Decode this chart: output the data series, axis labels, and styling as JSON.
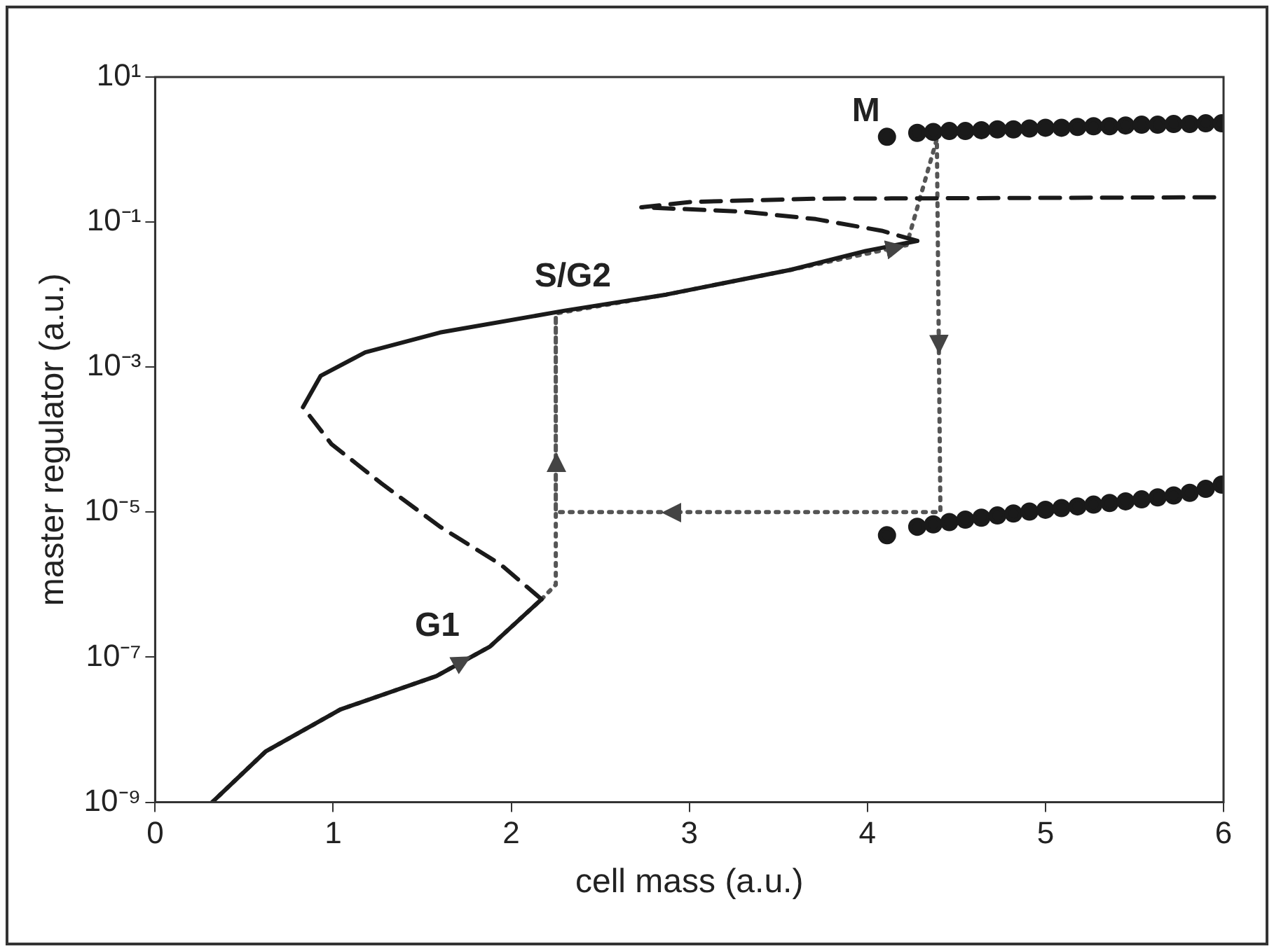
{
  "chart_data": {
    "type": "line",
    "xlabel": "cell mass (a.u.)",
    "ylabel": "master regulator (a.u.)",
    "xlim": [
      0,
      6
    ],
    "xticks": [
      0,
      1,
      2,
      3,
      4,
      5,
      6
    ],
    "ylim": [
      1e-09,
      10
    ],
    "log": "y",
    "grid": false,
    "yticks": [
      {
        "value": 10,
        "label": "10¹"
      },
      {
        "value": 0.1,
        "label": "10⁻¹"
      },
      {
        "value": 0.001,
        "label": "10⁻³"
      },
      {
        "value": 1e-05,
        "label": "10⁻⁵"
      },
      {
        "value": 1e-07,
        "label": "10⁻⁷"
      },
      {
        "value": 1e-09,
        "label": "10⁻⁹"
      }
    ],
    "annotations": [
      {
        "text": "G1",
        "x": 1.75,
        "y": 1.2e-07
      },
      {
        "text": "S/G2",
        "x": 2.6,
        "y": 0.008
      },
      {
        "text": "M",
        "x": 4.11,
        "y": 1.5
      }
    ],
    "series": [
      {
        "color": "#1a1a1a",
        "line_style": "solid",
        "marker": "none",
        "x": [
          0.32,
          0.62,
          1.04,
          1.58,
          1.88,
          2.17,
          1.5,
          0.83,
          0.93,
          1.18,
          1.6,
          2.3,
          2.87,
          3.57,
          3.99,
          4.28
        ],
        "values": [
          1e-09,
          5e-09,
          1.9e-08,
          5.5e-08,
          1.4e-07,
          6.3e-07,
          null,
          0.00028,
          0.00076,
          0.0016,
          0.003,
          0.006,
          0.01,
          0.022,
          0.04,
          0.055
        ]
      },
      {
        "color": "#1a1a1a",
        "line_style": "dashed",
        "marker": "none",
        "x": [
          2.17,
          1.94,
          1.6,
          1.27,
          0.99,
          0.83,
          2,
          4.28,
          4.08,
          3.71,
          3.29,
          2.73,
          3.01,
          3.71,
          6
        ],
        "values": [
          6.3e-07,
          1.9e-06,
          6.3e-06,
          2.5e-05,
          8.7e-05,
          0.00028,
          null,
          0.055,
          0.076,
          0.11,
          0.14,
          0.16,
          0.19,
          0.21,
          0.22
        ]
      },
      {
        "type": "scatter",
        "color": "#1a1a1a",
        "marker": "circle",
        "x": [
          4.11,
          4.28,
          4.37,
          4.46,
          4.55,
          4.64,
          4.73,
          4.82,
          4.91,
          5.0,
          5.09,
          5.18,
          5.27,
          5.36,
          5.45,
          5.54,
          5.63,
          5.72,
          5.81,
          5.9,
          5.99
        ],
        "values": [
          1.5,
          1.7,
          1.75,
          1.8,
          1.8,
          1.85,
          1.9,
          1.9,
          1.95,
          2.0,
          2.0,
          2.05,
          2.1,
          2.1,
          2.15,
          2.2,
          2.2,
          2.25,
          2.25,
          2.3,
          2.3
        ]
      },
      {
        "type": "scatter",
        "color": "#1a1a1a",
        "marker": "circle",
        "x": [
          4.11,
          4.28,
          4.37,
          4.46,
          4.55,
          4.64,
          4.73,
          4.82,
          4.91,
          5.0,
          5.09,
          5.18,
          5.27,
          5.36,
          5.45,
          5.54,
          5.63,
          5.72,
          5.81,
          5.9,
          5.99
        ],
        "values": [
          4.8e-06,
          6.3e-06,
          6.8e-06,
          7.3e-06,
          7.9e-06,
          8.4e-06,
          9e-06,
          9.6e-06,
          1.02e-05,
          1.08e-05,
          1.14e-05,
          1.2e-05,
          1.27e-05,
          1.34e-05,
          1.41e-05,
          1.5e-05,
          1.6e-05,
          1.7e-05,
          1.85e-05,
          2.1e-05,
          2.4e-05
        ]
      },
      {
        "color": "#555555",
        "line_style": "dotted",
        "marker": "none",
        "x": [
          0.32,
          0.62,
          1.04,
          1.58,
          1.88,
          2.17,
          2.25,
          2.25,
          2.87,
          3.57,
          4.22,
          4.39,
          4.41,
          2.25,
          2.25
        ],
        "values": [
          1e-09,
          5e-09,
          1.9e-08,
          5.5e-08,
          1.4e-07,
          6.3e-07,
          1e-06,
          0.0055,
          0.01,
          0.022,
          0.048,
          1.4,
          1e-05,
          1e-05,
          0.0055
        ]
      }
    ]
  }
}
